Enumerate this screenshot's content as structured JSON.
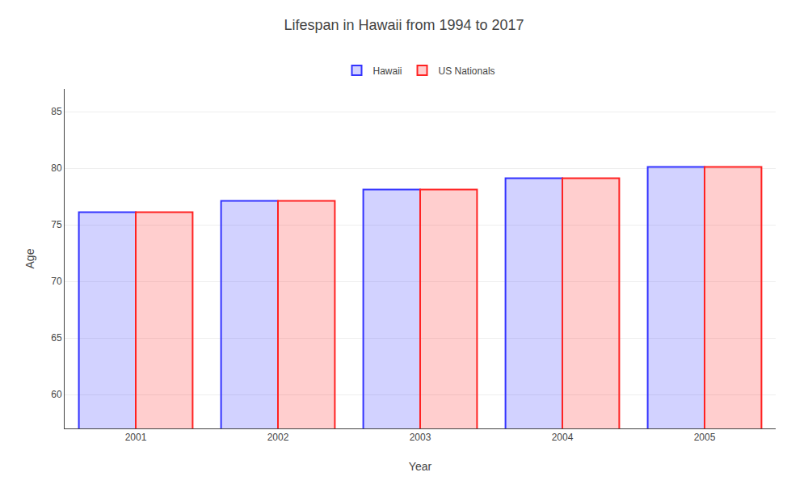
{
  "chart_data": {
    "type": "bar",
    "title": "Lifespan in Hawaii from 1994 to 2017",
    "x_label": "Year",
    "y_label": "Age",
    "categories": [
      "2001",
      "2002",
      "2003",
      "2004",
      "2005"
    ],
    "series": [
      {
        "name": "Hawaii",
        "color": "#3333ff",
        "values": [
          76.1,
          77.1,
          78.1,
          79.1,
          80.1
        ]
      },
      {
        "name": "US Nationals",
        "color": "#ff2222",
        "values": [
          76.1,
          77.1,
          78.1,
          79.1,
          80.1
        ]
      }
    ],
    "ylim": [
      57,
      87
    ],
    "yticks": [
      60,
      65,
      70,
      75,
      80,
      85
    ],
    "grid": true,
    "legend": "top"
  }
}
